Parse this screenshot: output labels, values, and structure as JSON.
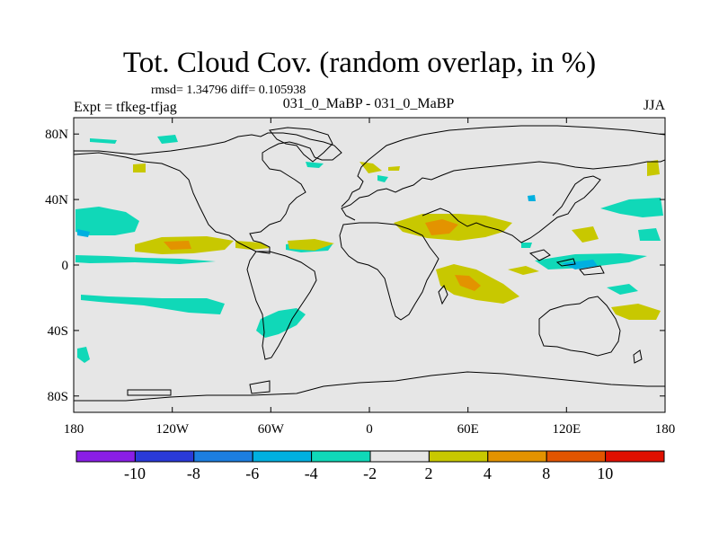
{
  "header": {
    "title": "Tot. Cloud Cov. (random overlap, in %)",
    "stats": "rmsd= 1.34796 diff= 0.105938",
    "experiment": "Expt = tfkeg-tfjag",
    "comparison": "031_0_MaBP - 031_0_MaBP",
    "season": "JJA"
  },
  "map": {
    "projection": "cylindrical-equidistant",
    "lon_range": [
      -180,
      180
    ],
    "lat_range": [
      -90,
      90
    ],
    "x_ticks": [
      "180",
      "120W",
      "60W",
      "0",
      "60E",
      "120E",
      "180"
    ],
    "y_ticks": [
      "80N",
      "40N",
      "0",
      "40S",
      "80S"
    ],
    "background_color": "#e6e6e6",
    "anomaly_regions": [
      {
        "label": "Sahel / Arabia",
        "sign": "positive",
        "level": "2-4",
        "color": "#c8c800"
      },
      {
        "label": "Tropical Pacific (ITCZ)",
        "sign": "positive",
        "level": "4-8",
        "color": "#e39300"
      },
      {
        "label": "Indian Ocean south of equator",
        "sign": "positive",
        "level": "4-8",
        "color": "#e39300"
      },
      {
        "label": "North Pacific",
        "sign": "negative",
        "level": "-4 to -2",
        "color": "#10d8b8"
      },
      {
        "label": "South Atlantic",
        "sign": "negative",
        "level": "-4 to -2",
        "color": "#10d8b8"
      },
      {
        "label": "Maritime continent",
        "sign": "negative",
        "level": "-6 to -4",
        "color": "#00b0e0"
      }
    ]
  },
  "colorbar": {
    "levels": [
      "-10",
      "-8",
      "-6",
      "-4",
      "-2",
      "2",
      "4",
      "8",
      "10"
    ],
    "colors": [
      "#8a1ee6",
      "#2a3ad8",
      "#1c7ee0",
      "#00b0e0",
      "#10d8b8",
      "#e6e6e6",
      "#c8c800",
      "#e39300",
      "#e25500",
      "#e01000"
    ]
  }
}
